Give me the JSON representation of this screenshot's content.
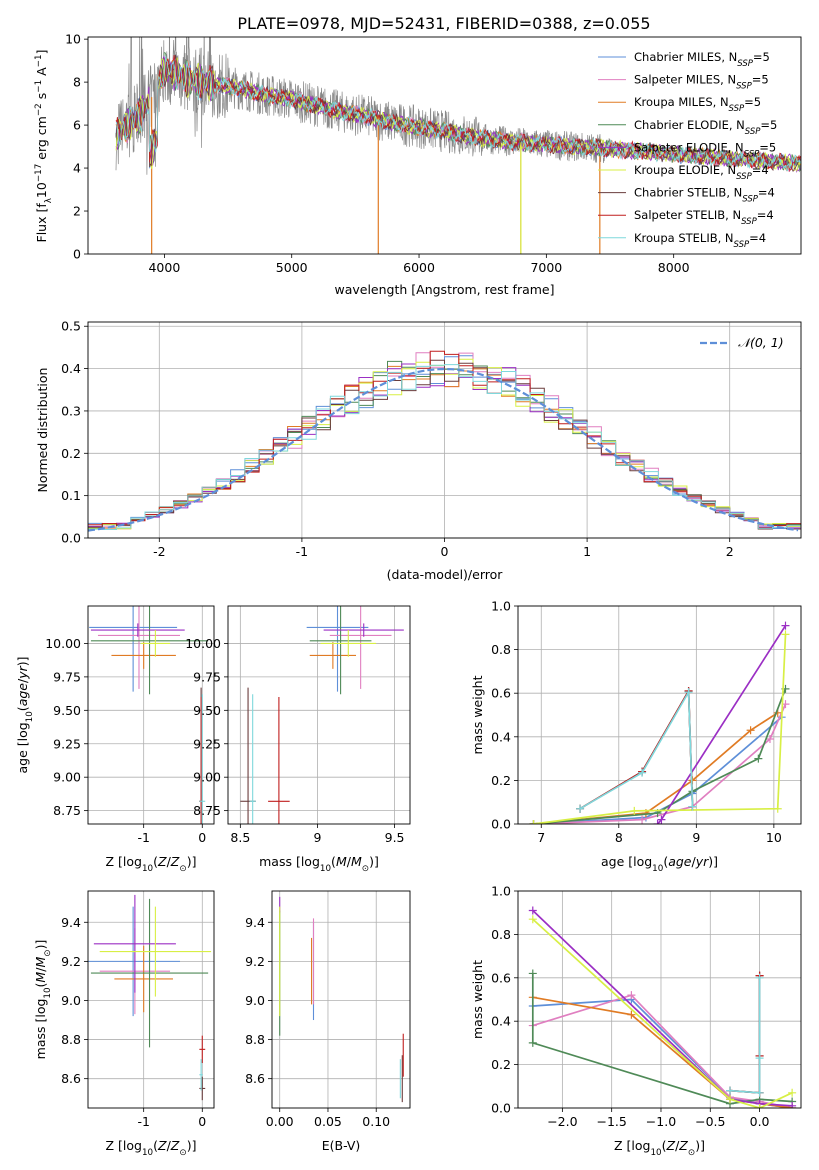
{
  "figure_title": "PLATE=0978, MJD=52431, FIBERID=0388, z=0.055",
  "series_colors": {
    "Chabrier MILES": "#5e8fd8",
    "Salpeter MILES": "#e07fc0",
    "Kroupa MILES": "#e07b24",
    "Chabrier ELODIE": "#4f8a57",
    "Salpeter ELODIE": "#9b2fc4",
    "Kroupa ELODIE": "#d8ef45",
    "Chabrier STELIB": "#6a3d3d",
    "Salpeter STELIB": "#c01f1f",
    "Kroupa STELIB": "#7fd8dc",
    "data": "#888888",
    "normal": "#5e8fd8"
  },
  "chart_data": [
    {
      "id": "spectrum",
      "type": "line",
      "title": "PLATE=0978, MJD=52431, FIBERID=0388, z=0.055",
      "xlabel": "wavelength [Angstrom, rest frame]",
      "ylabel_parts": [
        "Flux [f",
        "λ",
        "10",
        "-17",
        " erg cm",
        "-2",
        " s",
        "-1",
        " A",
        "-1",
        "]"
      ],
      "xlim": [
        3400,
        9000
      ],
      "ylim": [
        0,
        10.1
      ],
      "xticks": [
        4000,
        5000,
        6000,
        7000,
        8000
      ],
      "yticks": [
        0,
        2,
        4,
        6,
        8,
        10
      ],
      "legend_position": "top-right",
      "legend": [
        {
          "name": "Chabrier MILES",
          "nssp": "5"
        },
        {
          "name": "Salpeter MILES",
          "nssp": "5"
        },
        {
          "name": "Kroupa MILES",
          "nssp": "5"
        },
        {
          "name": "Chabrier ELODIE",
          "nssp": "5"
        },
        {
          "name": "Salpeter ELODIE",
          "nssp": "5"
        },
        {
          "name": "Kroupa ELODIE",
          "nssp": "4"
        },
        {
          "name": "Chabrier STELIB",
          "nssp": "4"
        },
        {
          "name": "Salpeter STELIB",
          "nssp": "4"
        },
        {
          "name": "Kroupa STELIB",
          "nssp": "4"
        }
      ],
      "legend_subscript": "SSP",
      "continuum": {
        "x": [
          3620,
          3700,
          3800,
          3900,
          4000,
          4100,
          4200,
          4400,
          4600,
          4800,
          5000,
          5200,
          5400,
          5600,
          5800,
          6000,
          6200,
          6400,
          6600,
          6800,
          7000,
          7200,
          7400,
          7600,
          7800,
          8000,
          8200,
          8400,
          8600,
          8800,
          9000
        ],
        "y": [
          5.5,
          6.0,
          6.4,
          7.3,
          8.6,
          8.4,
          8.1,
          7.9,
          7.7,
          7.4,
          7.2,
          6.9,
          6.6,
          6.4,
          6.1,
          5.9,
          5.7,
          5.5,
          5.3,
          5.2,
          5.1,
          5.0,
          4.95,
          4.85,
          4.75,
          4.65,
          4.55,
          4.45,
          4.4,
          4.3,
          4.2
        ]
      },
      "dropouts": [
        3900,
        5680,
        6800,
        7420
      ]
    },
    {
      "id": "residuals",
      "type": "histogram",
      "xlabel": "(data-model)/error",
      "ylabel": "Normed distribution",
      "xlim": [
        -2.5,
        2.5
      ],
      "ylim": [
        0,
        0.51
      ],
      "xticks": [
        -2,
        -1,
        0,
        1,
        2
      ],
      "yticks": [
        0.0,
        0.1,
        0.2,
        0.3,
        0.4,
        0.5
      ],
      "legend_position": "top-right",
      "legend_label": "𝒩(0, 1)",
      "bin_width": 0.1
    },
    {
      "id": "age_vs_Z",
      "type": "errorbar",
      "xlabel": "Z [log10(Z/Z⊙)]",
      "ylabel": "age  [log10(age/yr)]",
      "xlim": [
        -1.95,
        0.2
      ],
      "ylim": [
        8.65,
        10.28
      ],
      "xticks": [
        -1,
        0
      ],
      "yticks": [
        8.75,
        9.0,
        9.25,
        9.5,
        9.75,
        10.0
      ],
      "points": [
        {
          "s": "Chabrier MILES",
          "x": -1.18,
          "xerr": 0.75,
          "y": 10.12,
          "yerr": 0.48
        },
        {
          "s": "Salpeter MILES",
          "x": -1.08,
          "xerr": 0.7,
          "y": 10.06,
          "yerr": 0.4
        },
        {
          "s": "Kroupa MILES",
          "x": -1.0,
          "xerr": 0.55,
          "y": 9.91,
          "yerr": 0.1
        },
        {
          "s": "Chabrier ELODIE",
          "x": -0.9,
          "xerr": 1.0,
          "y": 10.02,
          "yerr": 0.4
        },
        {
          "s": "Salpeter ELODIE",
          "x": -1.1,
          "xerr": 0.8,
          "y": 10.1,
          "yerr": 0.05
        },
        {
          "s": "Kroupa ELODIE",
          "x": -0.8,
          "xerr": 0.25,
          "y": 10.0,
          "yerr": 0.1
        },
        {
          "s": "Chabrier STELIB",
          "x": -0.02,
          "xerr": 0.03,
          "y": 8.82,
          "yerr": 0.85
        },
        {
          "s": "Salpeter STELIB",
          "x": -0.02,
          "xerr": 0.03,
          "y": 8.82,
          "yerr": 0.78
        },
        {
          "s": "Kroupa STELIB",
          "x": 0.0,
          "xerr": 0.05,
          "y": 8.82,
          "yerr": 0.8
        }
      ]
    },
    {
      "id": "age_vs_mass",
      "type": "errorbar",
      "xlabel": "mass [log10(M/M⊙)]",
      "ylabel": "",
      "xlim": [
        8.42,
        9.6
      ],
      "ylim": [
        8.65,
        10.28
      ],
      "xticks": [
        8.5,
        9.0,
        9.5
      ],
      "yticks": [
        8.75,
        9.0,
        9.25,
        9.5,
        9.75,
        10.0
      ],
      "points": [
        {
          "s": "Chabrier MILES",
          "x": 9.13,
          "xerr": 0.2,
          "y": 10.12,
          "yerr": 0.48
        },
        {
          "s": "Salpeter MILES",
          "x": 9.28,
          "xerr": 0.2,
          "y": 10.06,
          "yerr": 0.4
        },
        {
          "s": "Kroupa MILES",
          "x": 9.1,
          "xerr": 0.15,
          "y": 9.91,
          "yerr": 0.1
        },
        {
          "s": "Chabrier ELODIE",
          "x": 9.15,
          "xerr": 0.2,
          "y": 10.02,
          "yerr": 0.4
        },
        {
          "s": "Salpeter ELODIE",
          "x": 9.3,
          "xerr": 0.26,
          "y": 10.1,
          "yerr": 0.05
        },
        {
          "s": "Kroupa ELODIE",
          "x": 9.2,
          "xerr": 0.18,
          "y": 10.0,
          "yerr": 0.1
        },
        {
          "s": "Chabrier STELIB",
          "x": 8.55,
          "xerr": 0.05,
          "y": 8.82,
          "yerr": 0.85
        },
        {
          "s": "Salpeter STELIB",
          "x": 8.75,
          "xerr": 0.07,
          "y": 8.82,
          "yerr": 0.78
        },
        {
          "s": "Kroupa STELIB",
          "x": 8.58,
          "xerr": 0.02,
          "y": 8.82,
          "yerr": 0.8
        }
      ]
    },
    {
      "id": "weight_vs_age",
      "type": "line",
      "xlabel": "age  [log10(age/yr)]",
      "ylabel": "mass weight",
      "xlim": [
        6.7,
        10.35
      ],
      "ylim": [
        0,
        1.0
      ],
      "xticks": [
        7,
        8,
        9,
        10
      ],
      "yticks": [
        0.0,
        0.2,
        0.4,
        0.6,
        0.8,
        1.0
      ],
      "series": [
        {
          "s": "Chabrier MILES",
          "x": [
            6.9,
            8.35,
            8.95,
            10.1
          ],
          "y": [
            0.0,
            0.03,
            0.14,
            0.49
          ]
        },
        {
          "s": "Salpeter MILES",
          "x": [
            6.9,
            8.3,
            8.95,
            9.95,
            10.15
          ],
          "y": [
            0.0,
            0.02,
            0.08,
            0.39,
            0.55
          ]
        },
        {
          "s": "Kroupa MILES",
          "x": [
            6.9,
            8.35,
            8.95,
            9.7,
            10.05
          ],
          "y": [
            0.0,
            0.05,
            0.2,
            0.43,
            0.51
          ]
        },
        {
          "s": "Chabrier ELODIE",
          "x": [
            6.9,
            8.5,
            8.95,
            9.8,
            10.15
          ],
          "y": [
            0.0,
            0.05,
            0.15,
            0.3,
            0.62
          ]
        },
        {
          "s": "Salpeter ELODIE",
          "x": [
            8.5,
            8.55,
            10.15
          ],
          "y": [
            0.0,
            0.02,
            0.91
          ]
        },
        {
          "s": "Kroupa ELODIE",
          "x": [
            6.9,
            8.2,
            10.05,
            10.15
          ],
          "y": [
            0.0,
            0.06,
            0.07,
            0.87
          ]
        },
        {
          "s": "Chabrier STELIB",
          "x": [
            7.5,
            8.3,
            8.9,
            8.95
          ],
          "y": [
            0.07,
            0.24,
            0.61,
            0.08
          ]
        },
        {
          "s": "Salpeter STELIB",
          "x": [
            7.5,
            8.3,
            8.9,
            8.95
          ],
          "y": [
            0.07,
            0.24,
            0.61,
            0.08
          ]
        },
        {
          "s": "Kroupa STELIB",
          "x": [
            7.5,
            8.3,
            8.9,
            8.95
          ],
          "y": [
            0.07,
            0.235,
            0.605,
            0.08
          ]
        }
      ]
    },
    {
      "id": "mass_vs_Z",
      "type": "errorbar",
      "xlabel": "Z [log10(Z/Z⊙)]",
      "ylabel": "mass [log10(M/M⊙)]",
      "xlim": [
        -1.95,
        0.2
      ],
      "ylim": [
        8.45,
        9.56
      ],
      "xticks": [
        -1,
        0
      ],
      "yticks": [
        8.6,
        8.8,
        9.0,
        9.2,
        9.4
      ],
      "points": [
        {
          "s": "Chabrier MILES",
          "x": -1.18,
          "xerr": 0.8,
          "y": 9.2,
          "yerr": 0.28
        },
        {
          "s": "Salpeter MILES",
          "x": -1.15,
          "xerr": 0.6,
          "y": 9.15,
          "yerr": 0.22
        },
        {
          "s": "Kroupa MILES",
          "x": -1.0,
          "xerr": 0.5,
          "y": 9.11,
          "yerr": 0.17
        },
        {
          "s": "Chabrier ELODIE",
          "x": -0.9,
          "xerr": 1.0,
          "y": 9.14,
          "yerr": 0.38
        },
        {
          "s": "Salpeter ELODIE",
          "x": -1.15,
          "xerr": 0.7,
          "y": 9.29,
          "yerr": 0.25
        },
        {
          "s": "Kroupa ELODIE",
          "x": -0.8,
          "xerr": 0.95,
          "y": 9.25,
          "yerr": 0.23
        },
        {
          "s": "Chabrier STELIB",
          "x": 0.0,
          "xerr": 0.05,
          "y": 8.55,
          "yerr": 0.06
        },
        {
          "s": "Salpeter STELIB",
          "x": 0.0,
          "xerr": 0.05,
          "y": 8.75,
          "yerr": 0.07
        },
        {
          "s": "Kroupa STELIB",
          "x": -0.02,
          "xerr": 0.03,
          "y": 8.62,
          "yerr": 0.08
        }
      ]
    },
    {
      "id": "mass_vs_EBV",
      "type": "errorbar",
      "xlabel": "E(B-V)",
      "ylabel": "",
      "xlim": [
        -0.008,
        0.135
      ],
      "ylim": [
        8.45,
        9.56
      ],
      "xticks": [
        0.0,
        0.05,
        0.1
      ],
      "ytick_labels": [
        "8.6",
        "8.8",
        "9.0",
        "9.2",
        "9.4"
      ],
      "xtick_labels": [
        "0.00",
        "0.05",
        "0.10"
      ],
      "yticks": [
        8.6,
        8.8,
        9.0,
        9.2,
        9.4
      ],
      "points": [
        {
          "s": "Chabrier MILES",
          "x": 0.035,
          "xerr": 0.0,
          "y": 9.15,
          "yerr": 0.25
        },
        {
          "s": "Salpeter MILES",
          "x": 0.035,
          "xerr": 0.0,
          "y": 9.2,
          "yerr": 0.22
        },
        {
          "s": "Kroupa MILES",
          "x": 0.033,
          "xerr": 0.0,
          "y": 9.15,
          "yerr": 0.17
        },
        {
          "s": "Chabrier ELODIE",
          "x": 0.0,
          "xerr": 0.0,
          "y": 9.14,
          "yerr": 0.32
        },
        {
          "s": "Salpeter ELODIE",
          "x": 0.0,
          "xerr": 0.0,
          "y": 9.49,
          "yerr": 0.04
        },
        {
          "s": "Kroupa ELODIE",
          "x": 0.0,
          "xerr": 0.0,
          "y": 9.2,
          "yerr": 0.28
        },
        {
          "s": "Chabrier STELIB",
          "x": 0.127,
          "xerr": 0.0,
          "y": 8.6,
          "yerr": 0.12
        },
        {
          "s": "Salpeter STELIB",
          "x": 0.128,
          "xerr": 0.0,
          "y": 8.72,
          "yerr": 0.11
        },
        {
          "s": "Kroupa STELIB",
          "x": 0.125,
          "xerr": 0.0,
          "y": 8.6,
          "yerr": 0.1
        }
      ]
    },
    {
      "id": "weight_vs_Z",
      "type": "line",
      "xlabel": "Z [log10(Z/Z⊙)]",
      "ylabel": "mass weight",
      "xlim": [
        -2.45,
        0.42
      ],
      "ylim": [
        0,
        1.0
      ],
      "xticks": [
        -2.0,
        -1.5,
        -1.0,
        -0.5,
        0.0
      ],
      "xtick_labels": [
        "−2.0",
        "−1.5",
        "−1.0",
        "−0.5",
        "0.0"
      ],
      "yticks": [
        0.0,
        0.2,
        0.4,
        0.6,
        0.8,
        1.0
      ],
      "series": [
        {
          "s": "Chabrier MILES",
          "x": [
            -2.3,
            -1.3,
            -0.3,
            0.0,
            0.33
          ],
          "y": [
            0.47,
            0.5,
            0.05,
            0.02,
            0.0
          ]
        },
        {
          "s": "Salpeter MILES",
          "x": [
            -2.3,
            -1.3,
            -0.3,
            0.0,
            0.33
          ],
          "y": [
            0.38,
            0.52,
            0.05,
            0.03,
            0.0
          ]
        },
        {
          "s": "Kroupa MILES",
          "x": [
            -2.3,
            -1.3,
            -0.3,
            0.0,
            0.33
          ],
          "y": [
            0.51,
            0.43,
            0.04,
            0.02,
            0.0
          ]
        },
        {
          "s": "Chabrier ELODIE",
          "x": [
            -2.3,
            -2.3,
            -0.3,
            0.0,
            0.33
          ],
          "y": [
            0.62,
            0.3,
            0.02,
            0.04,
            0.03
          ]
        },
        {
          "s": "Salpeter ELODIE",
          "x": [
            -2.3,
            -0.3,
            0.0,
            0.33
          ],
          "y": [
            0.91,
            0.04,
            0.02,
            0.01
          ]
        },
        {
          "s": "Kroupa ELODIE",
          "x": [
            -2.3,
            -0.3,
            0.0,
            0.33
          ],
          "y": [
            0.87,
            0.04,
            0.0,
            0.07
          ]
        },
        {
          "s": "Chabrier STELIB",
          "x": [
            -0.3,
            0.0,
            0.0,
            0.0
          ],
          "y": [
            0.08,
            0.07,
            0.61,
            0.24
          ]
        },
        {
          "s": "Salpeter STELIB",
          "x": [
            -0.3,
            0.0,
            0.0,
            0.0
          ],
          "y": [
            0.08,
            0.07,
            0.61,
            0.24
          ]
        },
        {
          "s": "Kroupa STELIB",
          "x": [
            -0.3,
            0.0,
            0.0,
            0.0
          ],
          "y": [
            0.08,
            0.07,
            0.6,
            0.23
          ]
        }
      ]
    }
  ]
}
